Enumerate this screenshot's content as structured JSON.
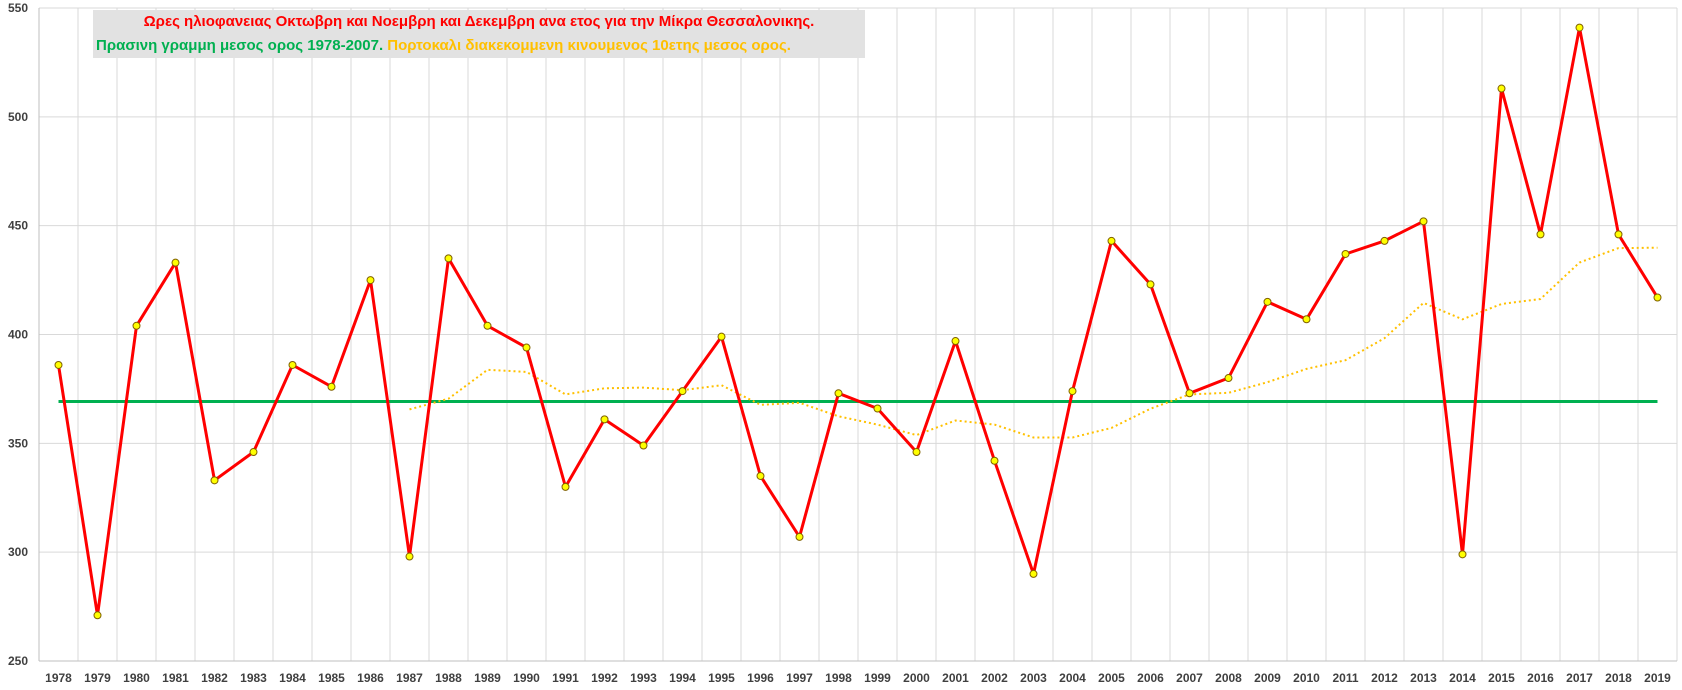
{
  "chart_data": {
    "type": "line",
    "title": "Ωρες ηλιοφανειας Οκτωβρη και Νοεμβρη και Δεκεμβρη ανα ετος για την Μίκρα Θεσσαλονικης.",
    "subtitle_green": "Πρασινη γραμμη μεσος ορος 1978-2007.",
    "subtitle_orange": "Πορτοκαλι διακεκομμενη κινουμενος 10ετης μεσος ορος.",
    "xlabel": "",
    "ylabel": "",
    "ylim": [
      250,
      550
    ],
    "yticks": [
      250,
      300,
      350,
      400,
      450,
      500,
      550
    ],
    "grid": true,
    "x": [
      1978,
      1979,
      1980,
      1981,
      1982,
      1983,
      1984,
      1985,
      1986,
      1987,
      1988,
      1989,
      1990,
      1991,
      1992,
      1993,
      1994,
      1995,
      1996,
      1997,
      1998,
      1999,
      2000,
      2001,
      2002,
      2003,
      2004,
      2005,
      2006,
      2007,
      2008,
      2009,
      2010,
      2011,
      2012,
      2013,
      2014,
      2015,
      2016,
      2017,
      2018,
      2019
    ],
    "series": [
      {
        "name": "",
        "role": "yearly",
        "color": "#ff0000",
        "marker_color": "#ffff00",
        "values": [
          386,
          271,
          404,
          433,
          333,
          346,
          386,
          376,
          425,
          298,
          435,
          404,
          394,
          330,
          361,
          349,
          374,
          399,
          335,
          307,
          373,
          366,
          346,
          397,
          342,
          290,
          374,
          443,
          423,
          373,
          380,
          415,
          407,
          437,
          443,
          452,
          299,
          513,
          446,
          541,
          446,
          417
        ]
      },
      {
        "name": "",
        "role": "moving-average-10y",
        "color": "#ffc000",
        "dashed": true,
        "values": [
          null,
          null,
          null,
          null,
          null,
          null,
          null,
          null,
          null,
          365.6,
          370.5,
          383.8,
          382.8,
          372.5,
          375.3,
          375.6,
          374.4,
          376.7,
          367.7,
          368.6,
          362.4,
          358.6,
          353.8,
          360.5,
          358.6,
          352.7,
          352.7,
          357.1,
          365.9,
          372.5,
          373.2,
          378.1,
          384.2,
          388.2,
          398.3,
          414.5,
          407.0,
          414.0,
          416.3,
          433.1,
          439.7,
          439.9
        ]
      },
      {
        "name": "",
        "role": "mean-1978-2007",
        "color": "#00b050",
        "constant": 369.2
      }
    ]
  }
}
